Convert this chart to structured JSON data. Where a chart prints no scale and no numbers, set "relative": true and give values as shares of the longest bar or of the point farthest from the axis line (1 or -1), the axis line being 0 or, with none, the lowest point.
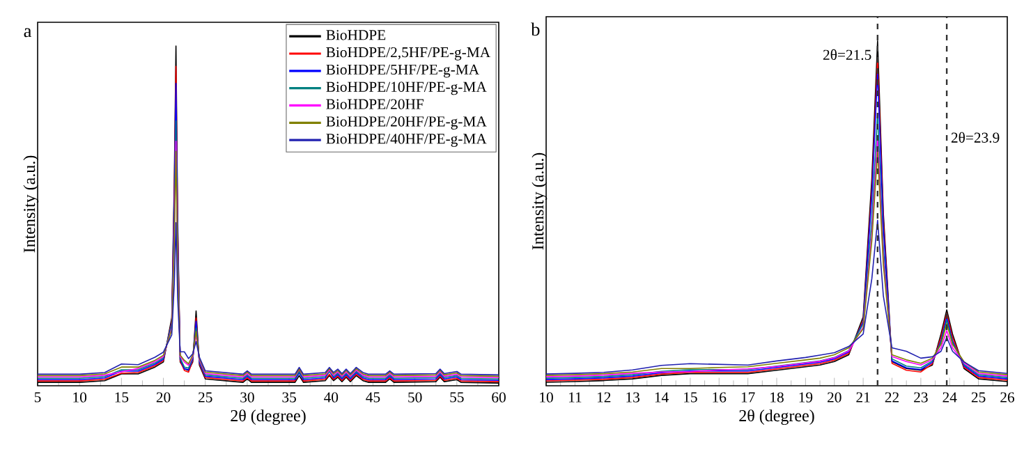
{
  "chart_data": [
    {
      "type": "line",
      "title": "a",
      "xlabel": "2θ (degree)",
      "ylabel": "Intensity (a.u.)",
      "relative": true,
      "legend": "top right",
      "xlim": [
        5,
        60
      ],
      "xticks": [
        5,
        10,
        15,
        20,
        25,
        30,
        35,
        40,
        45,
        50,
        55,
        60
      ],
      "x": [
        5,
        10,
        13,
        15,
        17,
        19,
        20,
        21,
        21.3,
        21.5,
        21.7,
        22,
        22.5,
        23,
        23.5,
        23.9,
        24.3,
        25,
        29.5,
        30,
        30.5,
        35.7,
        36.2,
        36.7,
        39.3,
        39.8,
        40.3,
        40.8,
        41.3,
        41.8,
        42.3,
        43,
        43.8,
        44.5,
        46.5,
        47,
        47.5,
        52.5,
        53,
        53.5,
        55,
        55.5,
        60
      ],
      "series": [
        {
          "name": "BioHDPE",
          "color": "#000000",
          "values": [
            0.01,
            0.01,
            0.015,
            0.035,
            0.035,
            0.055,
            0.07,
            0.2,
            0.6,
            1,
            0.5,
            0.07,
            0.05,
            0.045,
            0.07,
            0.22,
            0.06,
            0.02,
            0.01,
            0.02,
            0.01,
            0.01,
            0.03,
            0.01,
            0.015,
            0.03,
            0.015,
            0.025,
            0.012,
            0.025,
            0.012,
            0.03,
            0.015,
            0.01,
            0.01,
            0.02,
            0.01,
            0.012,
            0.025,
            0.012,
            0.018,
            0.01,
            0.008
          ]
        },
        {
          "name": "BioHDPE/2,5HF/PE-g-MA",
          "color": "#ff0000",
          "values": [
            0.014,
            0.014,
            0.019,
            0.037,
            0.039,
            0.059,
            0.074,
            0.19,
            0.57,
            0.94,
            0.47,
            0.074,
            0.045,
            0.04,
            0.074,
            0.2,
            0.064,
            0.024,
            0.014,
            0.024,
            0.014,
            0.014,
            0.045,
            0.014,
            0.019,
            0.034,
            0.019,
            0.029,
            0.016,
            0.029,
            0.016,
            0.034,
            0.019,
            0.014,
            0.014,
            0.024,
            0.014,
            0.016,
            0.029,
            0.016,
            0.022,
            0.014,
            0.012
          ]
        },
        {
          "name": "BioHDPE/5HF/PE-g-MA",
          "color": "#0000ff",
          "values": [
            0.018,
            0.018,
            0.023,
            0.043,
            0.043,
            0.063,
            0.078,
            0.185,
            0.54,
            0.89,
            0.45,
            0.078,
            0.05,
            0.047,
            0.078,
            0.19,
            0.068,
            0.028,
            0.018,
            0.028,
            0.018,
            0.018,
            0.038,
            0.018,
            0.023,
            0.043,
            0.023,
            0.033,
            0.02,
            0.033,
            0.02,
            0.038,
            0.023,
            0.018,
            0.018,
            0.028,
            0.018,
            0.02,
            0.033,
            0.02,
            0.026,
            0.018,
            0.016
          ]
        },
        {
          "name": "BioHDPE/10HF/PE-g-MA",
          "color": "#008080",
          "values": [
            0.022,
            0.022,
            0.027,
            0.047,
            0.047,
            0.067,
            0.082,
            0.18,
            0.47,
            0.78,
            0.4,
            0.082,
            0.055,
            0.052,
            0.082,
            0.17,
            0.072,
            0.032,
            0.022,
            0.032,
            0.022,
            0.022,
            0.042,
            0.022,
            0.027,
            0.042,
            0.027,
            0.037,
            0.024,
            0.037,
            0.024,
            0.042,
            0.027,
            0.022,
            0.022,
            0.032,
            0.022,
            0.024,
            0.037,
            0.024,
            0.03,
            0.022,
            0.02
          ]
        },
        {
          "name": "BioHDPE/20HF",
          "color": "#ff00ff",
          "values": [
            0.026,
            0.026,
            0.031,
            0.041,
            0.051,
            0.071,
            0.086,
            0.17,
            0.44,
            0.72,
            0.37,
            0.086,
            0.07,
            0.06,
            0.086,
            0.15,
            0.076,
            0.036,
            0.026,
            0.036,
            0.026,
            0.026,
            0.05,
            0.026,
            0.031,
            0.046,
            0.031,
            0.041,
            0.028,
            0.041,
            0.028,
            0.046,
            0.031,
            0.026,
            0.026,
            0.036,
            0.026,
            0.028,
            0.041,
            0.028,
            0.034,
            0.026,
            0.024
          ]
        },
        {
          "name": "BioHDPE/20HF/PE-g-MA",
          "color": "#808000",
          "values": [
            0.03,
            0.03,
            0.035,
            0.055,
            0.055,
            0.075,
            0.09,
            0.165,
            0.42,
            0.69,
            0.35,
            0.09,
            0.075,
            0.065,
            0.09,
            0.16,
            0.08,
            0.04,
            0.03,
            0.04,
            0.03,
            0.03,
            0.05,
            0.03,
            0.035,
            0.05,
            0.035,
            0.045,
            0.032,
            0.045,
            0.032,
            0.05,
            0.035,
            0.03,
            0.03,
            0.04,
            0.03,
            0.032,
            0.045,
            0.032,
            0.038,
            0.03,
            0.028
          ]
        },
        {
          "name": "BioHDPE/40HF/PE-g-MA",
          "color": "#2020b0",
          "values": [
            0.034,
            0.034,
            0.039,
            0.064,
            0.062,
            0.084,
            0.099,
            0.15,
            0.3,
            0.48,
            0.26,
            0.1,
            0.1,
            0.08,
            0.094,
            0.13,
            0.084,
            0.044,
            0.034,
            0.044,
            0.034,
            0.034,
            0.054,
            0.034,
            0.039,
            0.054,
            0.039,
            0.049,
            0.036,
            0.049,
            0.036,
            0.054,
            0.039,
            0.034,
            0.034,
            0.044,
            0.034,
            0.036,
            0.049,
            0.036,
            0.042,
            0.034,
            0.032
          ]
        }
      ]
    },
    {
      "type": "line",
      "title": "b",
      "xlabel": "2θ (degree)",
      "ylabel": "Intensity (a.u.)",
      "relative": true,
      "xlim": [
        10,
        26
      ],
      "xticks": [
        10,
        11,
        12,
        13,
        14,
        15,
        16,
        17,
        18,
        19,
        20,
        21,
        22,
        23,
        24,
        25,
        26
      ],
      "x": [
        10,
        11,
        12,
        13,
        14,
        15,
        16,
        17,
        18,
        19,
        19.5,
        20,
        20.5,
        21,
        21.3,
        21.5,
        21.7,
        22,
        22.5,
        23,
        23.4,
        23.7,
        23.9,
        24.1,
        24.5,
        25,
        26
      ],
      "ref_lines": [
        {
          "axis": "x",
          "value": 21.5,
          "label": "2θ=21.5",
          "line_style": "dashed",
          "color": "#333333"
        },
        {
          "axis": "x",
          "value": 23.9,
          "label": "2θ=23.9",
          "line_style": "dashed",
          "color": "#333333"
        }
      ],
      "series": [
        {
          "color": "#000000",
          "values": [
            0.01,
            0.012,
            0.015,
            0.02,
            0.03,
            0.035,
            0.035,
            0.035,
            0.045,
            0.055,
            0.06,
            0.07,
            0.09,
            0.2,
            0.6,
            1,
            0.5,
            0.07,
            0.05,
            0.045,
            0.06,
            0.15,
            0.22,
            0.15,
            0.05,
            0.02,
            0.012
          ]
        },
        {
          "color": "#ff0000",
          "values": [
            0.014,
            0.016,
            0.019,
            0.024,
            0.034,
            0.039,
            0.039,
            0.039,
            0.049,
            0.059,
            0.064,
            0.074,
            0.094,
            0.19,
            0.57,
            0.95,
            0.48,
            0.065,
            0.045,
            0.04,
            0.064,
            0.14,
            0.21,
            0.14,
            0.054,
            0.024,
            0.016
          ]
        },
        {
          "color": "#0000ff",
          "values": [
            0.018,
            0.02,
            0.023,
            0.028,
            0.038,
            0.043,
            0.043,
            0.043,
            0.053,
            0.063,
            0.068,
            0.078,
            0.098,
            0.185,
            0.55,
            0.91,
            0.46,
            0.072,
            0.052,
            0.047,
            0.068,
            0.13,
            0.2,
            0.13,
            0.058,
            0.028,
            0.02
          ]
        },
        {
          "color": "#008080",
          "values": [
            0.022,
            0.024,
            0.027,
            0.032,
            0.042,
            0.047,
            0.047,
            0.047,
            0.057,
            0.067,
            0.072,
            0.082,
            0.102,
            0.18,
            0.48,
            0.79,
            0.4,
            0.078,
            0.057,
            0.052,
            0.072,
            0.125,
            0.19,
            0.125,
            0.062,
            0.032,
            0.024
          ]
        },
        {
          "color": "#ff00ff",
          "values": [
            0.026,
            0.028,
            0.031,
            0.036,
            0.04,
            0.041,
            0.046,
            0.049,
            0.056,
            0.066,
            0.071,
            0.081,
            0.101,
            0.17,
            0.44,
            0.72,
            0.37,
            0.085,
            0.07,
            0.06,
            0.076,
            0.11,
            0.16,
            0.11,
            0.066,
            0.036,
            0.028
          ]
        },
        {
          "color": "#808000",
          "values": [
            0.03,
            0.032,
            0.035,
            0.04,
            0.05,
            0.05,
            0.053,
            0.055,
            0.065,
            0.075,
            0.08,
            0.09,
            0.11,
            0.165,
            0.42,
            0.68,
            0.35,
            0.09,
            0.075,
            0.065,
            0.08,
            0.12,
            0.18,
            0.12,
            0.07,
            0.04,
            0.032
          ]
        },
        {
          "color": "#2020b0",
          "values": [
            0.034,
            0.036,
            0.039,
            0.046,
            0.059,
            0.064,
            0.062,
            0.06,
            0.072,
            0.082,
            0.089,
            0.096,
            0.114,
            0.15,
            0.31,
            0.48,
            0.26,
            0.11,
            0.1,
            0.08,
            0.084,
            0.1,
            0.14,
            0.1,
            0.069,
            0.044,
            0.036
          ]
        }
      ]
    }
  ]
}
